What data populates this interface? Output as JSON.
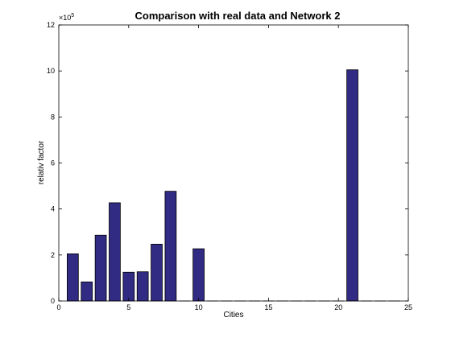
{
  "chart_data": {
    "type": "bar",
    "title": "Comparison with real data and Network 2",
    "xlabel": "Cities",
    "ylabel": "relativ factor",
    "exponent_base": "×10",
    "exponent_power": "5",
    "xlim": [
      0,
      25
    ],
    "ylim": [
      0,
      12
    ],
    "xticks": [
      0,
      5,
      10,
      15,
      20,
      25
    ],
    "yticks": [
      0,
      2,
      4,
      6,
      8,
      10,
      12
    ],
    "x": [
      1,
      2,
      3,
      4,
      5,
      6,
      7,
      8,
      9,
      10,
      11,
      12,
      13,
      14,
      15,
      16,
      17,
      18,
      19,
      20,
      21,
      22,
      23,
      24
    ],
    "values": [
      2.05,
      0.83,
      2.86,
      4.27,
      1.25,
      1.27,
      2.47,
      4.77,
      0,
      2.27,
      0,
      0,
      0,
      0,
      0,
      0,
      0,
      0,
      0,
      0,
      10.05,
      0,
      0,
      0
    ],
    "bar_color": "#312b83",
    "grid": false
  }
}
